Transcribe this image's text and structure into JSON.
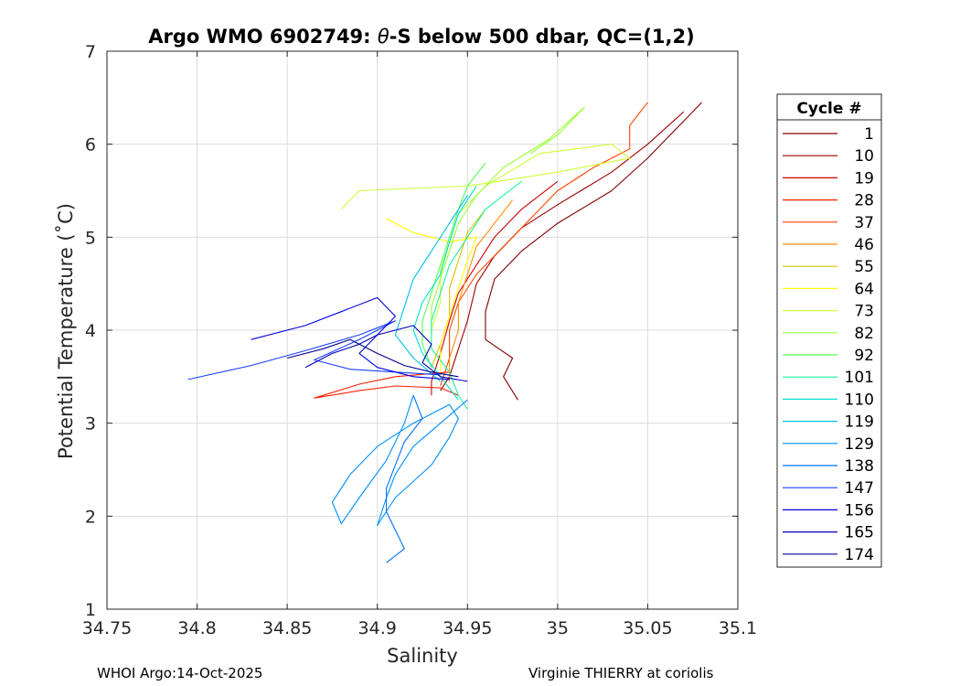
{
  "chart_data": {
    "type": "line",
    "title_prefix": "Argo WMO 6902749: ",
    "title_theta": "θ",
    "title_suffix": "-S below 500 dbar,  QC=(1,2)",
    "xlabel": "Salinity",
    "ylabel": "Potential Temperature (˚C)",
    "xlim": [
      34.75,
      35.1
    ],
    "ylim": [
      1,
      7
    ],
    "xticks": [
      34.75,
      34.8,
      34.85,
      34.9,
      34.95,
      35,
      35.05,
      35.1
    ],
    "xtick_labels": [
      "34.75",
      "34.8",
      "34.85",
      "34.9",
      "34.95",
      "35",
      "35.05",
      "35.1"
    ],
    "yticks": [
      1,
      2,
      3,
      4,
      5,
      6,
      7
    ],
    "ytick_labels": [
      "1",
      "2",
      "3",
      "4",
      "5",
      "6",
      "7"
    ],
    "grid": true,
    "legend_title": "Cycle #",
    "legend_position": "outside-right",
    "series": [
      {
        "name": "1",
        "color": "#800000",
        "points": [
          [
            35.08,
            6.45
          ],
          [
            35.07,
            6.25
          ],
          [
            35.06,
            6.05
          ],
          [
            35.05,
            5.85
          ],
          [
            35.03,
            5.5
          ],
          [
            35.0,
            5.15
          ],
          [
            34.98,
            4.85
          ],
          [
            34.965,
            4.55
          ],
          [
            34.96,
            4.2
          ],
          [
            34.96,
            3.9
          ],
          [
            34.975,
            3.7
          ],
          [
            34.97,
            3.5
          ],
          [
            34.978,
            3.25
          ]
        ]
      },
      {
        "name": "10",
        "color": "#9b0000",
        "points": [
          [
            35.07,
            6.35
          ],
          [
            35.05,
            6.0
          ],
          [
            35.03,
            5.7
          ],
          [
            35.0,
            5.35
          ],
          [
            34.98,
            5.1
          ],
          [
            34.965,
            4.8
          ],
          [
            34.955,
            4.5
          ],
          [
            34.95,
            4.1
          ],
          [
            34.945,
            3.8
          ],
          [
            34.94,
            3.5
          ],
          [
            34.935,
            3.35
          ]
        ]
      },
      {
        "name": "19",
        "color": "#cc0000",
        "points": [
          [
            35.0,
            5.6
          ],
          [
            34.98,
            5.3
          ],
          [
            34.965,
            5.0
          ],
          [
            34.955,
            4.7
          ],
          [
            34.945,
            4.4
          ],
          [
            34.94,
            4.1
          ],
          [
            34.935,
            3.75
          ],
          [
            34.93,
            3.45
          ],
          [
            34.93,
            3.3
          ]
        ]
      },
      {
        "name": "28",
        "color": "#ff1e00",
        "points": [
          [
            34.94,
            3.55
          ],
          [
            34.91,
            3.5
          ],
          [
            34.89,
            3.42
          ],
          [
            34.865,
            3.27
          ],
          [
            34.89,
            3.35
          ],
          [
            34.91,
            3.4
          ],
          [
            34.935,
            3.38
          ],
          [
            34.945,
            3.3
          ]
        ]
      },
      {
        "name": "37",
        "color": "#ff4400",
        "points": [
          [
            35.05,
            6.45
          ],
          [
            35.04,
            6.2
          ],
          [
            35.04,
            5.95
          ],
          [
            35.02,
            5.75
          ],
          [
            35.0,
            5.5
          ],
          [
            34.985,
            5.2
          ],
          [
            34.97,
            4.9
          ],
          [
            34.955,
            4.6
          ],
          [
            34.945,
            4.3
          ],
          [
            34.94,
            4.0
          ],
          [
            34.94,
            3.7
          ],
          [
            34.935,
            3.4
          ]
        ]
      },
      {
        "name": "46",
        "color": "#ff8c00",
        "points": [
          [
            34.975,
            5.4
          ],
          [
            34.965,
            5.15
          ],
          [
            34.955,
            4.9
          ],
          [
            34.95,
            4.6
          ],
          [
            34.945,
            4.3
          ],
          [
            34.945,
            4.0
          ],
          [
            34.94,
            3.7
          ],
          [
            34.94,
            3.45
          ]
        ]
      },
      {
        "name": "55",
        "color": "#d9c200",
        "points": [
          [
            34.96,
            5.3
          ],
          [
            34.95,
            5.05
          ],
          [
            34.945,
            4.75
          ],
          [
            34.94,
            4.45
          ],
          [
            34.94,
            4.15
          ],
          [
            34.935,
            3.85
          ],
          [
            34.93,
            3.6
          ]
        ]
      },
      {
        "name": "64",
        "color": "#ffff00",
        "points": [
          [
            34.905,
            5.2
          ],
          [
            34.92,
            5.05
          ],
          [
            34.94,
            4.95
          ],
          [
            34.955,
            5.0
          ],
          [
            34.95,
            4.75
          ],
          [
            34.945,
            4.45
          ],
          [
            34.94,
            4.15
          ],
          [
            34.935,
            3.85
          ],
          [
            34.935,
            3.55
          ]
        ]
      },
      {
        "name": "73",
        "color": "#ccff33",
        "points": [
          [
            34.88,
            5.3
          ],
          [
            34.89,
            5.5
          ],
          [
            34.95,
            5.55
          ],
          [
            35.0,
            5.7
          ],
          [
            35.04,
            5.85
          ],
          [
            35.03,
            6.0
          ],
          [
            34.99,
            5.9
          ],
          [
            34.96,
            5.55
          ],
          [
            34.945,
            5.25
          ],
          [
            34.94,
            4.95
          ],
          [
            34.935,
            4.65
          ],
          [
            34.935,
            4.3
          ],
          [
            34.93,
            4.0
          ]
        ]
      },
      {
        "name": "82",
        "color": "#99ff33",
        "points": [
          [
            34.985,
            5.9
          ],
          [
            35.0,
            6.1
          ],
          [
            35.015,
            6.4
          ],
          [
            34.995,
            6.05
          ],
          [
            34.97,
            5.75
          ],
          [
            34.955,
            5.45
          ],
          [
            34.945,
            5.15
          ],
          [
            34.94,
            4.85
          ],
          [
            34.935,
            4.55
          ],
          [
            34.93,
            4.25
          ],
          [
            34.93,
            3.95
          ]
        ]
      },
      {
        "name": "92",
        "color": "#55ff55",
        "points": [
          [
            34.96,
            5.8
          ],
          [
            34.95,
            5.55
          ],
          [
            34.945,
            5.3
          ],
          [
            34.94,
            5.0
          ],
          [
            34.935,
            4.7
          ],
          [
            34.93,
            4.4
          ],
          [
            34.925,
            4.1
          ],
          [
            34.925,
            3.85
          ],
          [
            34.93,
            3.6
          ]
        ]
      },
      {
        "name": "101",
        "color": "#22f0a0",
        "points": [
          [
            34.98,
            5.6
          ],
          [
            34.96,
            5.3
          ],
          [
            34.95,
            5.0
          ],
          [
            34.94,
            4.7
          ],
          [
            34.935,
            4.4
          ],
          [
            34.93,
            4.1
          ],
          [
            34.93,
            3.8
          ],
          [
            34.94,
            3.55
          ],
          [
            34.945,
            3.3
          ],
          [
            34.95,
            3.15
          ]
        ]
      },
      {
        "name": "110",
        "color": "#00e0d0",
        "points": [
          [
            34.955,
            5.55
          ],
          [
            34.945,
            5.25
          ],
          [
            34.94,
            4.95
          ],
          [
            34.935,
            4.6
          ],
          [
            34.925,
            4.3
          ],
          [
            34.92,
            4.0
          ],
          [
            34.925,
            3.75
          ],
          [
            34.935,
            3.5
          ],
          [
            34.945,
            3.25
          ]
        ]
      },
      {
        "name": "119",
        "color": "#00c0e8",
        "points": [
          [
            34.95,
            5.45
          ],
          [
            34.94,
            5.15
          ],
          [
            34.93,
            4.85
          ],
          [
            34.92,
            4.55
          ],
          [
            34.915,
            4.25
          ],
          [
            34.91,
            3.95
          ],
          [
            34.92,
            3.7
          ],
          [
            34.935,
            3.45
          ]
        ]
      },
      {
        "name": "129",
        "color": "#0090ff",
        "points": [
          [
            34.95,
            3.25
          ],
          [
            34.935,
            3.0
          ],
          [
            34.92,
            2.75
          ],
          [
            34.91,
            2.45
          ],
          [
            34.905,
            2.2
          ],
          [
            34.9,
            1.9
          ],
          [
            34.91,
            2.2
          ],
          [
            34.93,
            2.55
          ],
          [
            34.94,
            2.85
          ],
          [
            34.945,
            3.05
          ],
          [
            34.94,
            3.2
          ],
          [
            34.92,
            3.0
          ],
          [
            34.9,
            2.75
          ],
          [
            34.885,
            2.45
          ],
          [
            34.875,
            2.15
          ],
          [
            34.88,
            1.92
          ],
          [
            34.89,
            2.2
          ],
          [
            34.905,
            2.6
          ],
          [
            34.915,
            3.0
          ],
          [
            34.92,
            3.3
          ]
        ]
      },
      {
        "name": "138",
        "color": "#0070ff",
        "points": [
          [
            34.92,
            3.3
          ],
          [
            34.925,
            3.05
          ],
          [
            34.915,
            2.8
          ],
          [
            34.91,
            2.55
          ],
          [
            34.905,
            2.3
          ],
          [
            34.905,
            2.05
          ],
          [
            34.91,
            1.85
          ],
          [
            34.915,
            1.65
          ],
          [
            34.905,
            1.5
          ]
        ]
      },
      {
        "name": "147",
        "color": "#1a40ff",
        "points": [
          [
            34.795,
            3.47
          ],
          [
            34.83,
            3.62
          ],
          [
            34.86,
            3.78
          ],
          [
            34.89,
            3.95
          ],
          [
            34.91,
            4.1
          ],
          [
            34.89,
            3.9
          ],
          [
            34.865,
            3.68
          ],
          [
            34.885,
            3.58
          ],
          [
            34.91,
            3.55
          ],
          [
            34.935,
            3.52
          ]
        ]
      },
      {
        "name": "156",
        "color": "#0000e0",
        "points": [
          [
            34.83,
            3.9
          ],
          [
            34.86,
            4.05
          ],
          [
            34.88,
            4.2
          ],
          [
            34.9,
            4.35
          ],
          [
            34.91,
            4.15
          ],
          [
            34.9,
            3.95
          ],
          [
            34.89,
            3.75
          ],
          [
            34.9,
            3.6
          ],
          [
            34.92,
            3.5
          ],
          [
            34.94,
            3.47
          ]
        ]
      },
      {
        "name": "165",
        "color": "#0000b8",
        "points": [
          [
            34.86,
            3.6
          ],
          [
            34.875,
            3.75
          ],
          [
            34.89,
            3.85
          ],
          [
            34.9,
            3.95
          ],
          [
            34.92,
            4.05
          ],
          [
            34.93,
            3.85
          ],
          [
            34.925,
            3.65
          ],
          [
            34.935,
            3.5
          ],
          [
            34.95,
            3.45
          ]
        ]
      },
      {
        "name": "174",
        "color": "#000090",
        "points": [
          [
            34.85,
            3.7
          ],
          [
            34.87,
            3.8
          ],
          [
            34.885,
            3.9
          ],
          [
            34.9,
            3.75
          ],
          [
            34.915,
            3.62
          ],
          [
            34.93,
            3.55
          ],
          [
            34.945,
            3.5
          ]
        ]
      }
    ]
  },
  "footer": {
    "left": "WHOI Argo:14-Oct-2025",
    "right": "Virginie THIERRY at coriolis"
  }
}
